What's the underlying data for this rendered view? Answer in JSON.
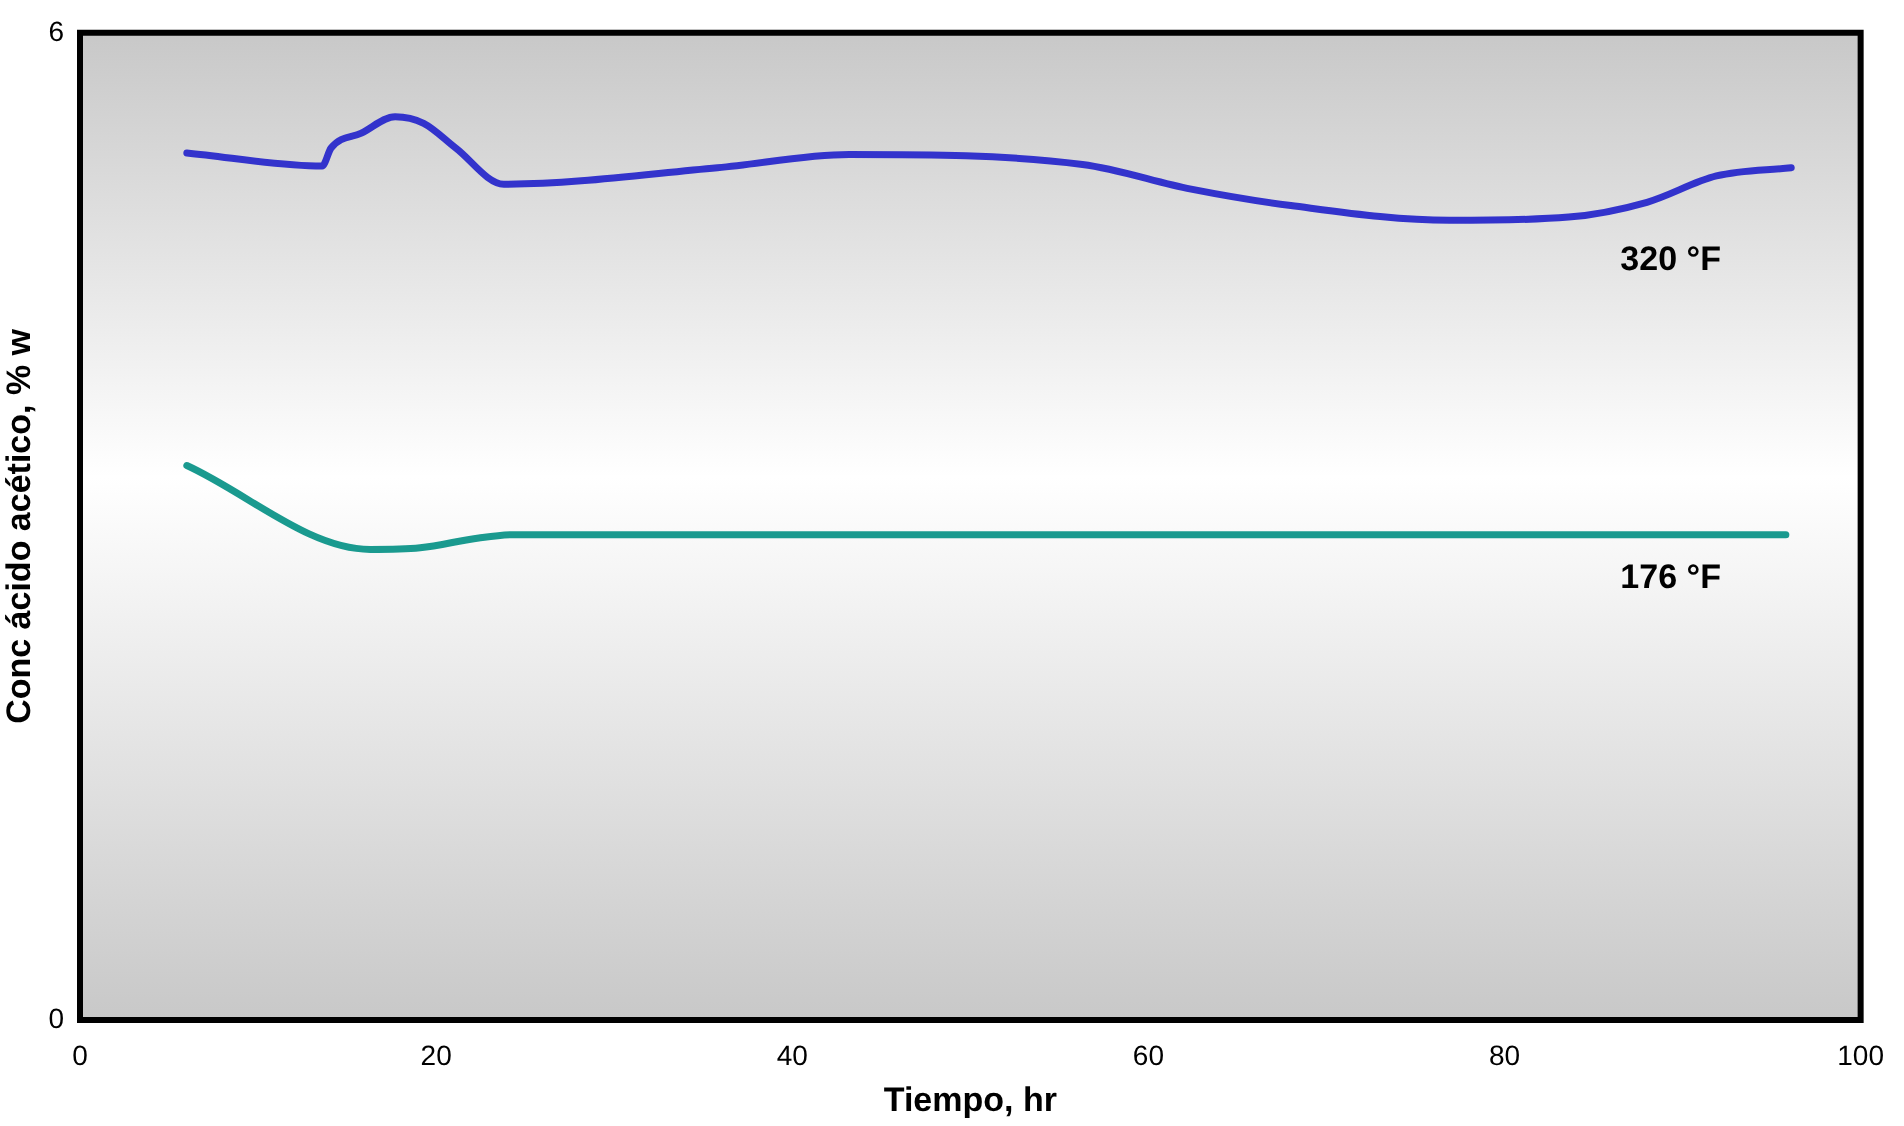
{
  "chart_data": {
    "type": "line",
    "xlabel": "Tiempo, hr",
    "ylabel": "Conc ácido acético, % w",
    "xlim": [
      0,
      100
    ],
    "xticks": [
      0,
      20,
      40,
      60,
      80,
      100
    ],
    "ylim": [
      0,
      6
    ],
    "yticks": [
      0,
      6
    ],
    "grid": false,
    "legend": false,
    "marker": "none",
    "line_style": "solid",
    "series": [
      {
        "name": "320 °F",
        "color": "#3333cc",
        "x": [
          6,
          13.6,
          14.1,
          15.8,
          17.7,
          19.3,
          21.1,
          23.8,
          35.8,
          43.2,
          56.3,
          62.4,
          68,
          76.9,
          83.6,
          88,
          91.9,
          96.1
        ],
        "values": [
          5.27,
          5.19,
          5.3,
          5.39,
          5.49,
          5.45,
          5.3,
          5.08,
          5.18,
          5.26,
          5.2,
          5.05,
          4.95,
          4.86,
          4.88,
          4.97,
          5.13,
          5.18
        ]
      },
      {
        "name": "176 °F",
        "color": "#1a9a8f",
        "x": [
          6,
          16.3,
          19.1,
          22.4,
          24.4,
          95.8
        ],
        "values": [
          3.37,
          2.86,
          2.87,
          2.93,
          2.95,
          2.95
        ]
      }
    ]
  }
}
